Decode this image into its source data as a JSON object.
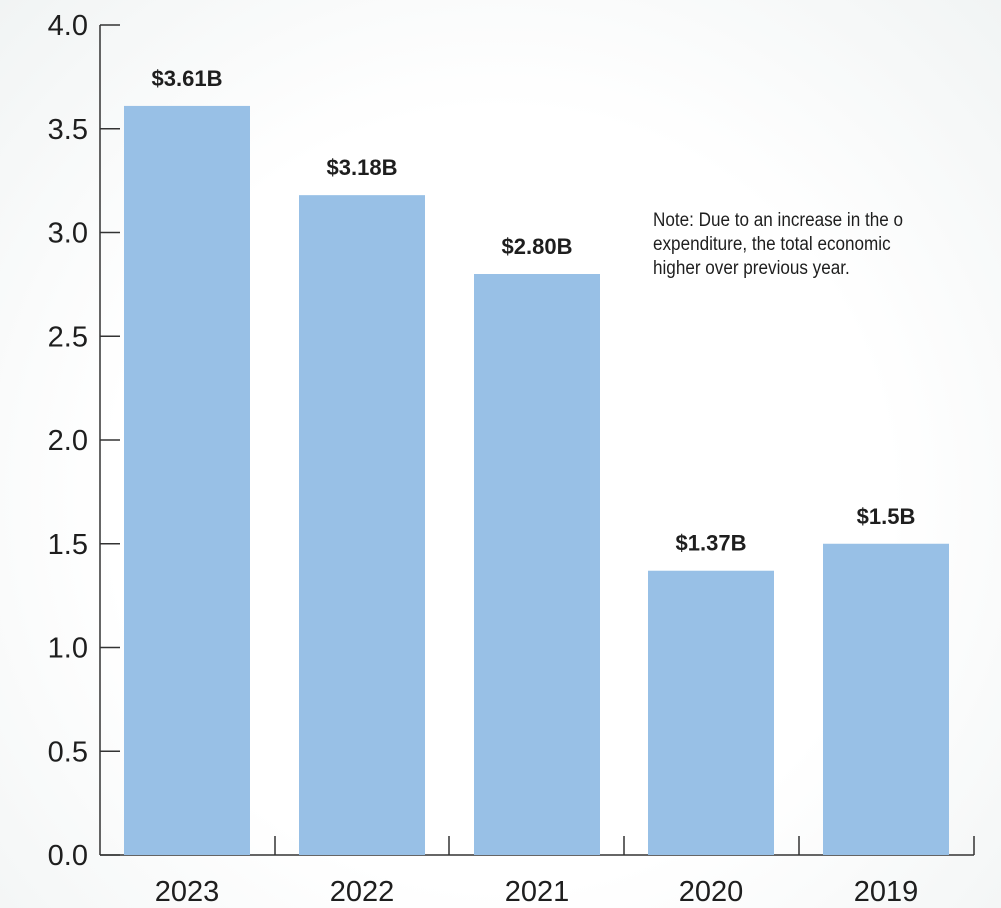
{
  "chart_data": {
    "type": "bar",
    "categories": [
      "2023",
      "2022",
      "2021",
      "2020",
      "2019"
    ],
    "values": [
      3.61,
      3.18,
      2.8,
      1.37,
      1.5
    ],
    "value_labels": [
      "$3.61B",
      "$3.18B",
      "$2.80B",
      "$1.37B",
      "$1.5B"
    ],
    "title": "",
    "xlabel": "",
    "ylabel": "",
    "ylim": [
      0,
      4.0
    ],
    "yticks": [
      "0.0",
      "0.5",
      "1.0",
      "1.5",
      "2.0",
      "2.5",
      "3.0",
      "3.5",
      "4.0"
    ],
    "grid": false,
    "bar_color": "#98c0e6",
    "axis_color": "#333333",
    "annotation": "Note: Due to an increase in the o\nexpenditure, the total economic\nhigher over previous year."
  }
}
